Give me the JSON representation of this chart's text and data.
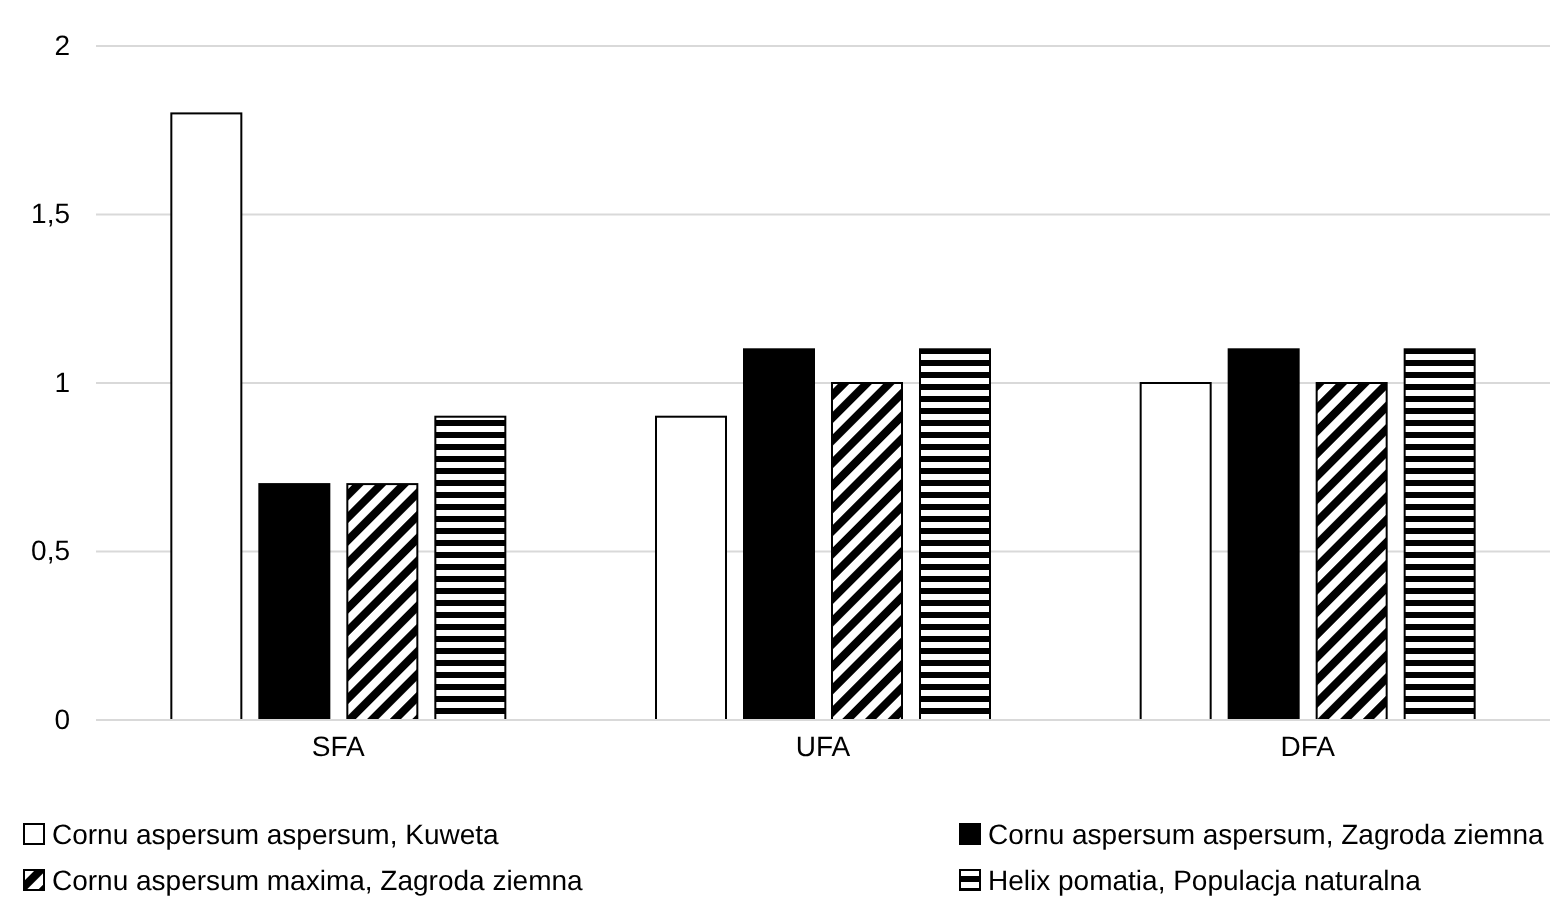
{
  "chart_data": {
    "type": "bar",
    "categories": [
      "SFA",
      "UFA",
      "DFA"
    ],
    "series": [
      {
        "name": "Cornu aspersum aspersum, Kuweta",
        "color": "#ffffff",
        "values": [
          1.8,
          0.9,
          1.0
        ]
      },
      {
        "name": "Cornu aspersum aspersum, Zagroda ziemna",
        "color": "#000000",
        "values": [
          0.7,
          1.1,
          1.1
        ]
      },
      {
        "name": "Cornu aspersum maxima, Zagroda ziemna",
        "color": "#000000",
        "values": [
          0.7,
          1.0,
          1.0
        ]
      },
      {
        "name": "Helix pomatia, Populacja naturalna",
        "color": "#000000",
        "values": [
          0.9,
          1.1,
          1.1
        ]
      }
    ],
    "ylim": [
      0,
      2
    ],
    "yticks": [
      0,
      {
        "value": 0.5,
        "label": "0,5"
      },
      1,
      {
        "value": 1.5,
        "label": "1,5"
      },
      2
    ],
    "grid": "y",
    "legend": "bottom"
  }
}
